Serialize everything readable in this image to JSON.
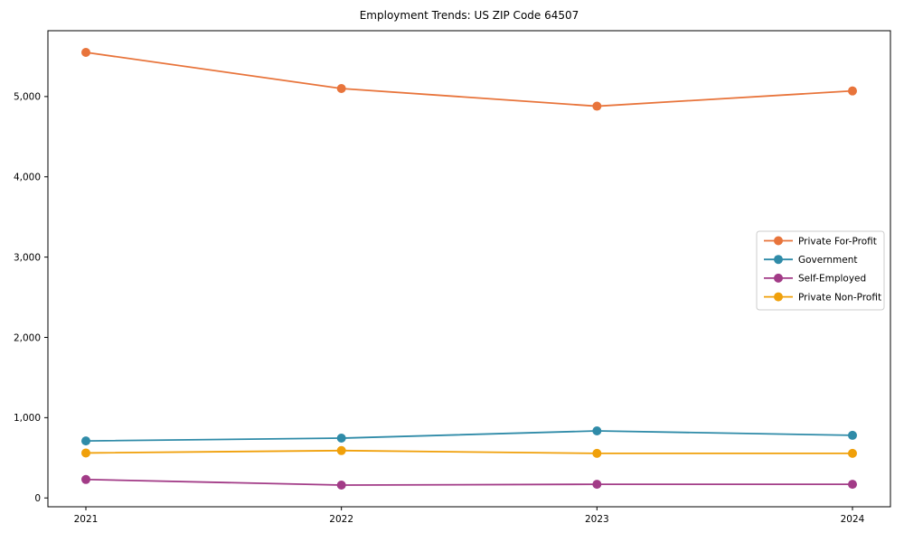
{
  "figure": {
    "background": "#ffffff",
    "frame_color": "#000000",
    "text_color": "#000000"
  },
  "chart_data": {
    "type": "line",
    "title": "Employment Trends: US ZIP Code 64507",
    "xlabel": "",
    "ylabel": "",
    "categories": [
      "2021",
      "2022",
      "2023",
      "2024"
    ],
    "series": [
      {
        "name": "Private For-Profit",
        "color": "#E8743B",
        "values": [
          5550,
          5100,
          4880,
          5070
        ]
      },
      {
        "name": "Government",
        "color": "#2F8BA8",
        "values": [
          710,
          745,
          835,
          780
        ]
      },
      {
        "name": "Self-Employed",
        "color": "#A23B87",
        "values": [
          230,
          160,
          170,
          170
        ]
      },
      {
        "name": "Private Non-Profit",
        "color": "#F0A00A",
        "values": [
          560,
          590,
          555,
          555
        ]
      }
    ],
    "ylim": [
      -110,
      5820
    ],
    "yticks": {
      "values": [
        0,
        1000,
        2000,
        3000,
        4000,
        5000
      ],
      "labels": [
        "0",
        "1,000",
        "2,000",
        "3,000",
        "4,000",
        "5,000"
      ]
    },
    "grid": false,
    "marker": "circle",
    "legend": {
      "position": "right-middle",
      "border_color": "#cccccc",
      "background": "#ffffff",
      "entries": [
        "Private For-Profit",
        "Government",
        "Self-Employed",
        "Private Non-Profit"
      ]
    }
  }
}
